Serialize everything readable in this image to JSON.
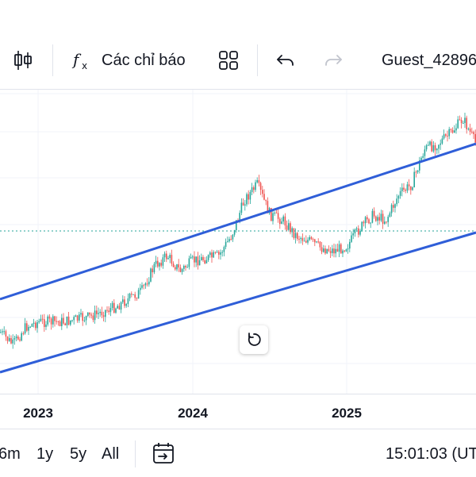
{
  "toolbar": {
    "candles_icon": "candlestick-chart-icon",
    "indicators_icon": "fx-icon",
    "indicators_label": "Các chỉ báo",
    "templates_icon": "grid-icon",
    "undo_icon": "undo-icon",
    "redo_icon": "redo-icon",
    "user_label": "Guest_42896"
  },
  "chart_data": {
    "type": "candlestick",
    "x_axis_labels": [
      "2023",
      "2024",
      "2025"
    ],
    "trend_channel": {
      "color": "#2f5ed8",
      "description_upper": [
        [
          "2022-09",
          0.0
        ],
        [
          "2025-12",
          1.0
        ]
      ],
      "description_lower": [
        [
          "2022-09",
          0.0
        ],
        [
          "2025-12",
          1.0
        ]
      ]
    },
    "up_color": "#26a69a",
    "down_color": "#ef5350",
    "price_line_color": "#26a69a",
    "series_trend": [
      {
        "t": "2022-09",
        "p": 0.22
      },
      {
        "t": "2022-10",
        "p": 0.14
      },
      {
        "t": "2022-11",
        "p": 0.09
      },
      {
        "t": "2022-12",
        "p": 0.16
      },
      {
        "t": "2023-01",
        "p": 0.18
      },
      {
        "t": "2023-03",
        "p": 0.18
      },
      {
        "t": "2023-05",
        "p": 0.2
      },
      {
        "t": "2023-07",
        "p": 0.24
      },
      {
        "t": "2023-09",
        "p": 0.3
      },
      {
        "t": "2023-10",
        "p": 0.4
      },
      {
        "t": "2023-11",
        "p": 0.44
      },
      {
        "t": "2023-12",
        "p": 0.38
      },
      {
        "t": "2024-01",
        "p": 0.42
      },
      {
        "t": "2024-02",
        "p": 0.43
      },
      {
        "t": "2024-03",
        "p": 0.44
      },
      {
        "t": "2024-04",
        "p": 0.52
      },
      {
        "t": "2024-05",
        "p": 0.66
      },
      {
        "t": "2024-06",
        "p": 0.72
      },
      {
        "t": "2024-07",
        "p": 0.6
      },
      {
        "t": "2024-08",
        "p": 0.58
      },
      {
        "t": "2024-09",
        "p": 0.52
      },
      {
        "t": "2024-10",
        "p": 0.5
      },
      {
        "t": "2024-11",
        "p": 0.47
      },
      {
        "t": "2024-12",
        "p": 0.46
      },
      {
        "t": "2025-01",
        "p": 0.48
      },
      {
        "t": "2025-02",
        "p": 0.55
      },
      {
        "t": "2025-03",
        "p": 0.6
      },
      {
        "t": "2025-04",
        "p": 0.58
      },
      {
        "t": "2025-05",
        "p": 0.68
      },
      {
        "t": "2025-06",
        "p": 0.72
      },
      {
        "t": "2025-07",
        "p": 0.86
      },
      {
        "t": "2025-08",
        "p": 0.88
      },
      {
        "t": "2025-09",
        "p": 0.92
      },
      {
        "t": "2025-10",
        "p": 0.98
      },
      {
        "t": "2025-11",
        "p": 0.88
      }
    ]
  },
  "reset_icon": "reset-chart-icon",
  "bottom_bar": {
    "ranges": [
      "6m",
      "1y",
      "5y",
      "All"
    ],
    "goto_icon": "calendar-goto-icon",
    "clock": "15:01:03 (UTC"
  }
}
